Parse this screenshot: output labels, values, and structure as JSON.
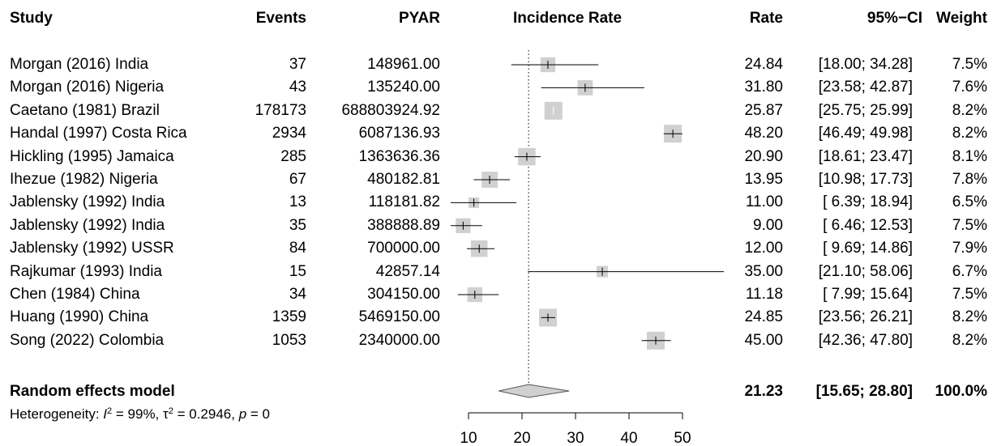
{
  "headers": {
    "study": "Study",
    "events": "Events",
    "pyar": "PYAR",
    "plot": "Incidence Rate",
    "rate": "Rate",
    "ci": "95%−CI",
    "weight": "Weight"
  },
  "chart_data": {
    "type": "forest",
    "xlim": [
      10,
      50
    ],
    "ticks": [
      10,
      20,
      30,
      40,
      50
    ],
    "reference_line": 21.23,
    "studies": [
      {
        "study": "Morgan (2016) India",
        "events": "37",
        "pyar": "148961.00",
        "rate": 24.84,
        "lower": 18.0,
        "upper": 34.28,
        "rate_text": "24.84",
        "ci_text": "[18.00; 34.28]",
        "weight_text": "7.5%",
        "weight": 7.5
      },
      {
        "study": "Morgan (2016) Nigeria",
        "events": "43",
        "pyar": "135240.00",
        "rate": 31.8,
        "lower": 23.58,
        "upper": 42.87,
        "rate_text": "31.80",
        "ci_text": "[23.58; 42.87]",
        "weight_text": "7.6%",
        "weight": 7.6
      },
      {
        "study": "Caetano (1981) Brazil",
        "events": "178173",
        "pyar": "688803924.92",
        "rate": 25.87,
        "lower": 25.75,
        "upper": 25.99,
        "rate_text": "25.87",
        "ci_text": "[25.75; 25.99]",
        "weight_text": "8.2%",
        "weight": 8.2
      },
      {
        "study": "Handal (1997) Costa Rica",
        "events": "2934",
        "pyar": "6087136.93",
        "rate": 48.2,
        "lower": 46.49,
        "upper": 49.98,
        "rate_text": "48.20",
        "ci_text": "[46.49; 49.98]",
        "weight_text": "8.2%",
        "weight": 8.2
      },
      {
        "study": "Hickling (1995) Jamaica",
        "events": "285",
        "pyar": "1363636.36",
        "rate": 20.9,
        "lower": 18.61,
        "upper": 23.47,
        "rate_text": "20.90",
        "ci_text": "[18.61; 23.47]",
        "weight_text": "8.1%",
        "weight": 8.1
      },
      {
        "study": "Ihezue (1982) Nigeria",
        "events": "67",
        "pyar": "480182.81",
        "rate": 13.95,
        "lower": 10.98,
        "upper": 17.73,
        "rate_text": "13.95",
        "ci_text": "[10.98; 17.73]",
        "weight_text": "7.8%",
        "weight": 7.8
      },
      {
        "study": "Jablensky (1992) India",
        "events": "13",
        "pyar": "118181.82",
        "rate": 11.0,
        "lower": 6.39,
        "upper": 18.94,
        "rate_text": "11.00",
        "ci_text": "[ 6.39; 18.94]",
        "weight_text": "6.5%",
        "weight": 6.5
      },
      {
        "study": "Jablensky (1992) India",
        "events": "35",
        "pyar": "388888.89",
        "rate": 9.0,
        "lower": 6.46,
        "upper": 12.53,
        "rate_text": "9.00",
        "ci_text": "[ 6.46; 12.53]",
        "weight_text": "7.5%",
        "weight": 7.5
      },
      {
        "study": "Jablensky (1992) USSR",
        "events": "84",
        "pyar": "700000.00",
        "rate": 12.0,
        "lower": 9.69,
        "upper": 14.86,
        "rate_text": "12.00",
        "ci_text": "[ 9.69; 14.86]",
        "weight_text": "7.9%",
        "weight": 7.9
      },
      {
        "study": "Rajkumar (1993) India",
        "events": "15",
        "pyar": "42857.14",
        "rate": 35.0,
        "lower": 21.1,
        "upper": 58.06,
        "rate_text": "35.00",
        "ci_text": "[21.10; 58.06]",
        "weight_text": "6.7%",
        "weight": 6.7
      },
      {
        "study": "Chen (1984) China",
        "events": "34",
        "pyar": "304150.00",
        "rate": 11.18,
        "lower": 7.99,
        "upper": 15.64,
        "rate_text": "11.18",
        "ci_text": "[ 7.99; 15.64]",
        "weight_text": "7.5%",
        "weight": 7.5
      },
      {
        "study": "Huang (1990) China",
        "events": "1359",
        "pyar": "5469150.00",
        "rate": 24.85,
        "lower": 23.56,
        "upper": 26.21,
        "rate_text": "24.85",
        "ci_text": "[23.56; 26.21]",
        "weight_text": "8.2%",
        "weight": 8.2
      },
      {
        "study": "Song (2022) Colombia",
        "events": "1053",
        "pyar": "2340000.00",
        "rate": 45.0,
        "lower": 42.36,
        "upper": 47.8,
        "rate_text": "45.00",
        "ci_text": "[42.36; 47.80]",
        "weight_text": "8.2%",
        "weight": 8.2
      }
    ],
    "summary": {
      "label": "Random effects model",
      "rate": 21.23,
      "lower": 15.65,
      "upper": 28.8,
      "rate_text": "21.23",
      "ci_text": "[15.65; 28.80]",
      "weight_text": "100.0%"
    },
    "heterogeneity": {
      "prefix": "Heterogeneity: ",
      "i2_symbol": "I",
      "i2_value": " = 99%, ",
      "tau2_symbol": "τ",
      "tau2_value": " = 0.2946, ",
      "p_symbol": "p",
      "p_value": " = 0"
    },
    "colors": {
      "square": "#d0d0d0",
      "diamond": "#d0d0d0",
      "line": "#000000",
      "light_line": "#ffffff"
    }
  }
}
